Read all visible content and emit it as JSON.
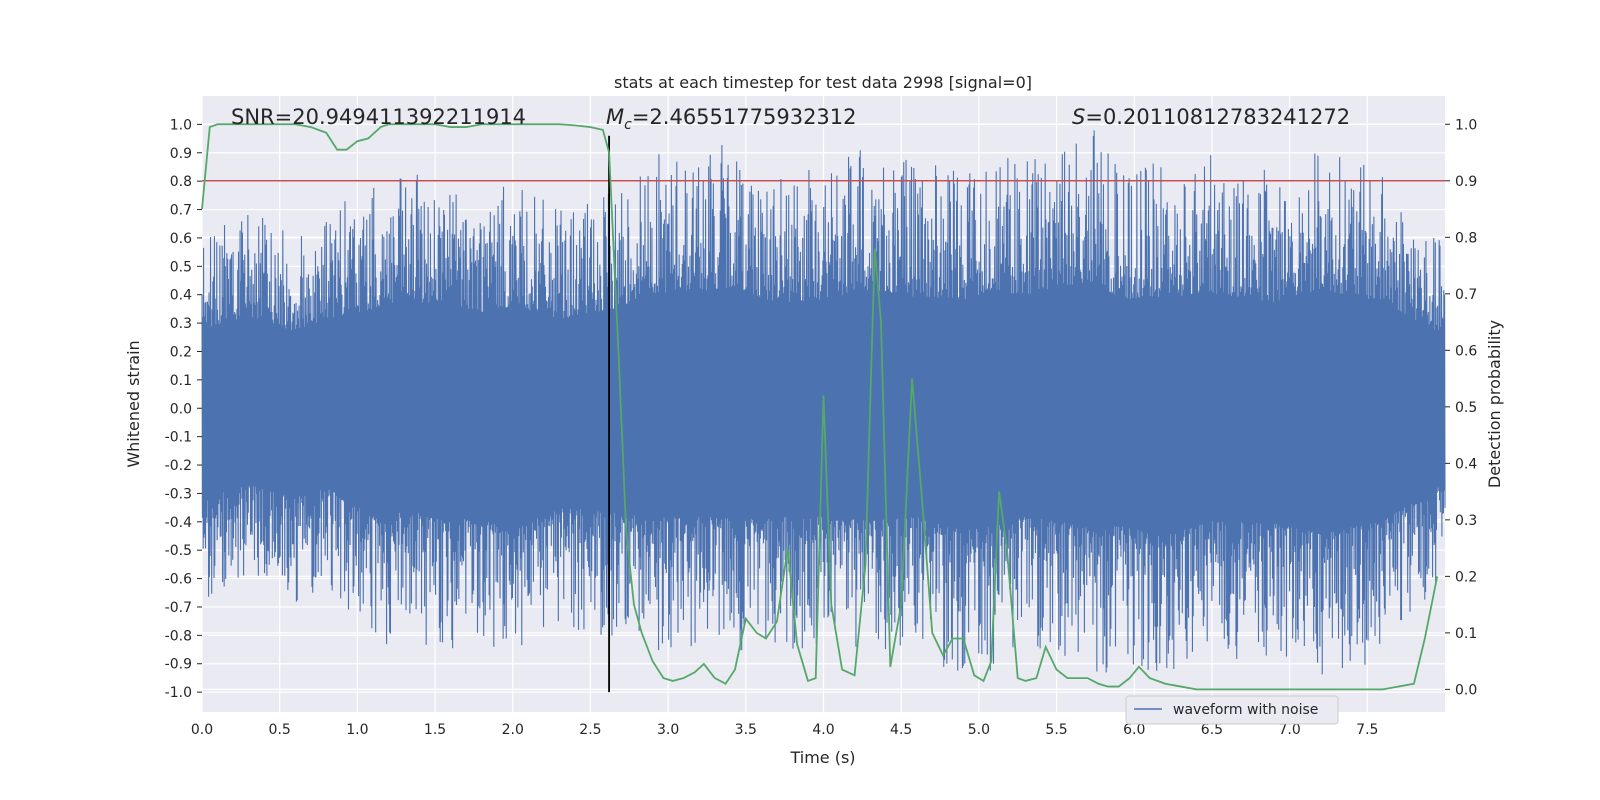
{
  "chart_data": {
    "type": "line",
    "title": "stats at each timestep for test data 2998 [signal=0]",
    "xlabel": "Time (s)",
    "ylabel": "Whitened strain",
    "y2label": "Detection probability",
    "xlim": [
      0.0,
      8.0
    ],
    "ylim": [
      -1.07,
      1.1
    ],
    "y2lim": [
      -0.04,
      1.05
    ],
    "x_ticks": [
      "0.0",
      "0.5",
      "1.0",
      "1.5",
      "2.0",
      "2.5",
      "3.0",
      "3.5",
      "4.0",
      "4.5",
      "5.0",
      "5.5",
      "6.0",
      "6.5",
      "7.0",
      "7.5"
    ],
    "y_ticks": [
      "1.0",
      "0.9",
      "0.8",
      "0.7",
      "0.6",
      "0.5",
      "0.4",
      "0.3",
      "0.2",
      "0.1",
      "0.0",
      "-0.1",
      "-0.2",
      "-0.3",
      "-0.4",
      "-0.5",
      "-0.6",
      "-0.7",
      "-0.8",
      "-0.9",
      "-1.0"
    ],
    "y2_ticks": [
      "1.0",
      "0.9",
      "0.8",
      "0.7",
      "0.6",
      "0.5",
      "0.4",
      "0.3",
      "0.2",
      "0.1",
      "0.0"
    ],
    "grid": true,
    "legend": {
      "position": "lower-center-right",
      "entries": [
        "waveform with noise"
      ]
    },
    "annotations": {
      "snr": "SNR=20.949411392211914",
      "mc_symbol": "M",
      "mc_sub": "c",
      "mc_value": "=2.46551775932312",
      "s_symbol": "S",
      "s_value": "=0.20110812783241272"
    },
    "threshold": {
      "axis": "y2",
      "value": 0.9,
      "color": "#c44e52"
    },
    "vline": {
      "x": 2.62,
      "color": "#000000"
    },
    "series": [
      {
        "name": "waveform with noise",
        "axis": "y",
        "color": "#4c72b0",
        "style": "dense-noise",
        "peak_envelope_x": [
          0.0,
          0.3,
          0.6,
          0.8,
          1.2,
          1.3,
          1.5,
          1.8,
          2.0,
          2.3,
          2.6,
          2.9,
          3.2,
          3.45,
          3.7,
          4.0,
          4.3,
          4.6,
          4.9,
          5.1,
          5.3,
          5.5,
          5.75,
          5.9,
          6.2,
          6.5,
          6.9,
          7.2,
          7.6,
          7.95
        ],
        "peak_envelope_top": [
          0.62,
          0.72,
          0.6,
          0.7,
          0.8,
          0.82,
          0.83,
          0.75,
          0.8,
          0.7,
          0.75,
          0.9,
          0.92,
          0.94,
          0.82,
          0.85,
          0.93,
          0.87,
          0.85,
          0.93,
          0.87,
          0.95,
          0.99,
          0.85,
          0.87,
          0.9,
          0.83,
          0.93,
          0.83,
          0.6
        ],
        "peak_envelope_bottom": [
          -0.71,
          -0.6,
          -0.7,
          -0.62,
          -0.92,
          -0.78,
          -0.87,
          -0.87,
          -0.95,
          -0.78,
          -0.8,
          -0.86,
          -0.84,
          -0.87,
          -0.85,
          -0.85,
          -0.88,
          -0.85,
          -0.96,
          -0.92,
          -0.85,
          -0.88,
          -0.95,
          -0.92,
          -1.0,
          -0.88,
          -0.9,
          -0.98,
          -0.88,
          -0.62
        ]
      },
      {
        "name": "detection probability",
        "axis": "y2",
        "color": "#55a868",
        "x": [
          0.0,
          0.05,
          0.1,
          0.2,
          0.3,
          0.4,
          0.5,
          0.6,
          0.7,
          0.8,
          0.87,
          0.93,
          1.0,
          1.07,
          1.15,
          1.2,
          1.3,
          1.4,
          1.5,
          1.6,
          1.7,
          1.8,
          1.9,
          2.0,
          2.1,
          2.2,
          2.3,
          2.4,
          2.5,
          2.58,
          2.62,
          2.68,
          2.73,
          2.78,
          2.83,
          2.9,
          2.97,
          3.03,
          3.1,
          3.17,
          3.23,
          3.3,
          3.37,
          3.43,
          3.5,
          3.57,
          3.63,
          3.7,
          3.77,
          3.83,
          3.9,
          3.95,
          4.0,
          4.05,
          4.12,
          4.2,
          4.27,
          4.33,
          4.37,
          4.43,
          4.5,
          4.57,
          4.63,
          4.7,
          4.77,
          4.83,
          4.9,
          4.97,
          5.03,
          5.08,
          5.13,
          5.18,
          5.25,
          5.3,
          5.37,
          5.43,
          5.5,
          5.57,
          5.63,
          5.7,
          5.77,
          5.83,
          5.9,
          5.97,
          6.03,
          6.1,
          6.2,
          6.3,
          6.4,
          6.5,
          6.6,
          6.8,
          7.0,
          7.2,
          7.4,
          7.6,
          7.7,
          7.8,
          7.87,
          7.95
        ],
        "values": [
          0.85,
          0.995,
          1.0,
          1.0,
          1.0,
          1.0,
          1.0,
          1.0,
          0.995,
          0.985,
          0.955,
          0.955,
          0.97,
          0.975,
          0.995,
          1.0,
          1.0,
          1.0,
          1.0,
          0.995,
          0.995,
          1.0,
          1.0,
          1.0,
          1.0,
          1.0,
          1.0,
          0.998,
          0.995,
          0.99,
          0.95,
          0.6,
          0.28,
          0.15,
          0.1,
          0.05,
          0.02,
          0.015,
          0.02,
          0.03,
          0.045,
          0.02,
          0.01,
          0.035,
          0.125,
          0.1,
          0.09,
          0.12,
          0.25,
          0.08,
          0.015,
          0.02,
          0.52,
          0.15,
          0.035,
          0.025,
          0.22,
          0.78,
          0.65,
          0.04,
          0.15,
          0.55,
          0.35,
          0.1,
          0.06,
          0.09,
          0.09,
          0.025,
          0.015,
          0.05,
          0.35,
          0.25,
          0.02,
          0.015,
          0.02,
          0.075,
          0.035,
          0.02,
          0.02,
          0.02,
          0.01,
          0.005,
          0.005,
          0.02,
          0.04,
          0.02,
          0.01,
          0.005,
          0.0,
          0.0,
          0.0,
          0.0,
          0.0,
          0.0,
          0.0,
          0.0,
          0.005,
          0.01,
          0.09,
          0.2
        ]
      }
    ]
  }
}
